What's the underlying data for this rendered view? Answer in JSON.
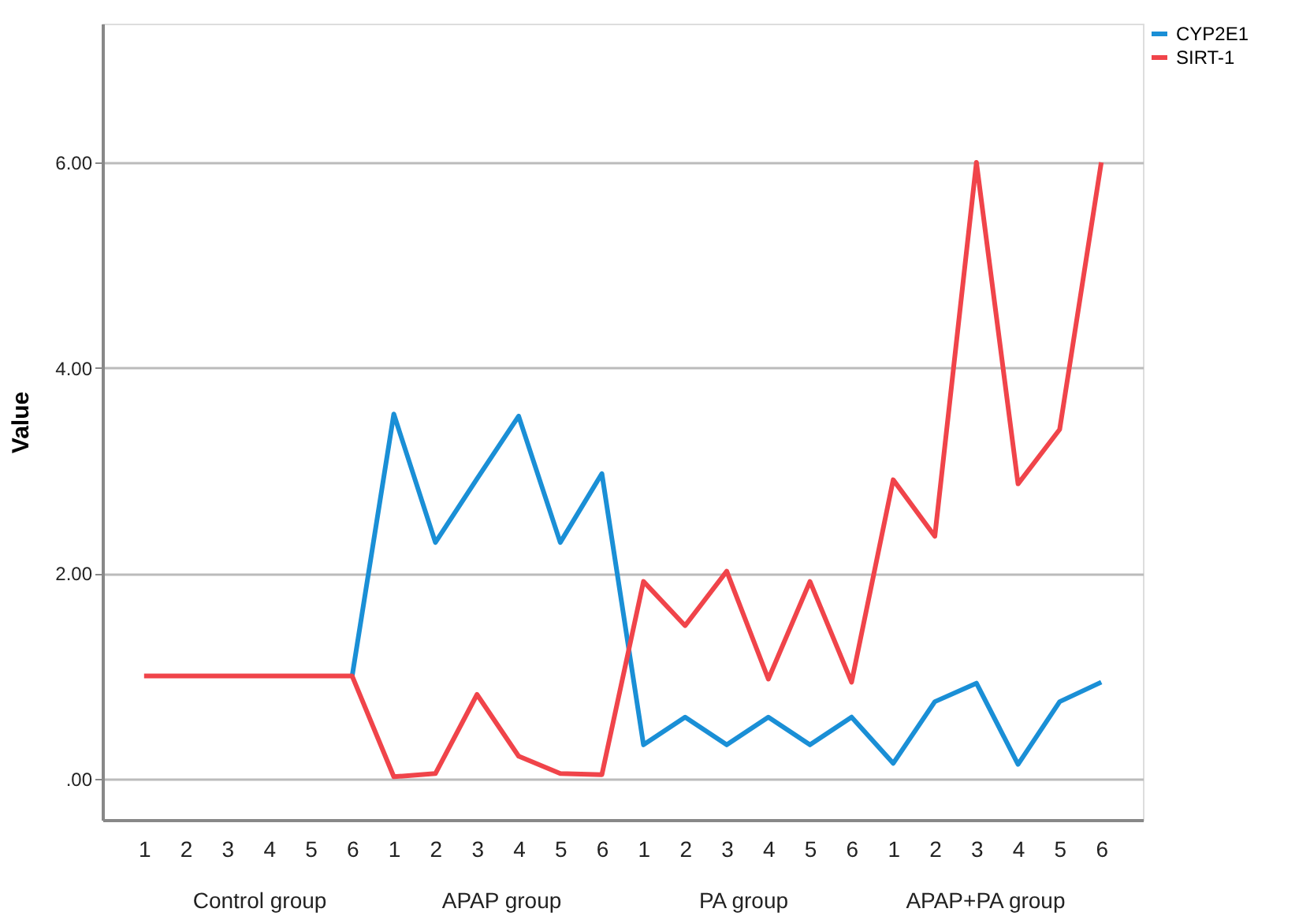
{
  "chart_data": {
    "type": "line",
    "ylabel": "Value",
    "categories": [
      "1",
      "2",
      "3",
      "4",
      "5",
      "6",
      "1",
      "2",
      "3",
      "4",
      "5",
      "6",
      "1",
      "2",
      "3",
      "4",
      "5",
      "6",
      "1",
      "2",
      "3",
      "4",
      "5",
      "6"
    ],
    "annotations": [
      "Control group",
      "APAP group",
      "PA group",
      "APAP+PA group"
    ],
    "series": [
      {
        "name": "CYP2E1",
        "color": "#1a8fd6",
        "values": [
          null,
          null,
          null,
          null,
          null,
          1,
          3.55,
          2.3,
          2.92,
          3.53,
          2.3,
          2.97,
          0.33,
          0.6,
          0.33,
          0.6,
          0.33,
          0.6,
          0.15,
          0.75,
          0.93,
          0.14,
          0.75,
          0.94
        ]
      },
      {
        "name": "SIRT-1",
        "color": "#f0444a",
        "values": [
          1,
          1,
          1,
          1,
          1,
          1,
          0.02,
          0.05,
          0.82,
          0.22,
          0.05,
          0.04,
          1.92,
          1.49,
          2.02,
          0.97,
          1.92,
          0.94,
          2.91,
          2.36,
          6.0,
          2.87,
          3.4,
          6.0
        ]
      }
    ],
    "ylim": [
      -0.4,
      7.35
    ],
    "yticks": [
      {
        "value": 0,
        "label": ".00"
      },
      {
        "value": 2,
        "label": "2.00"
      },
      {
        "value": 4,
        "label": "4.00"
      },
      {
        "value": 6,
        "label": "6.00"
      }
    ],
    "grid": "y",
    "legend": "top right",
    "line_style": "solid",
    "marker": "none"
  }
}
